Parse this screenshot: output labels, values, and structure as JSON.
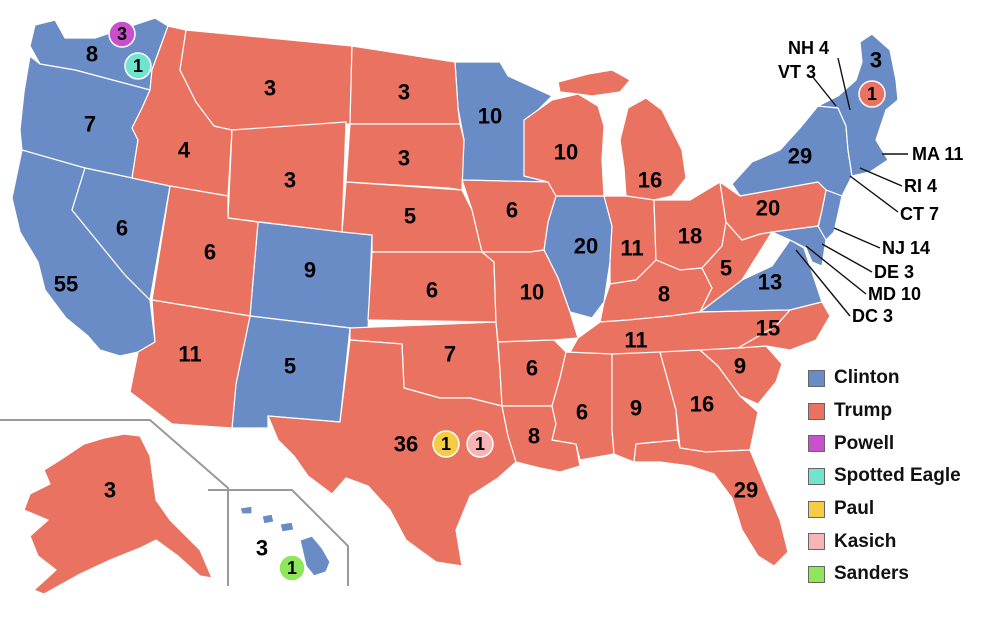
{
  "colors": {
    "clinton": "#6a8cc6",
    "trump": "#ea7260",
    "powell": "#c94fcb",
    "spotted_eagle": "#71e3cf",
    "paul": "#f5cd45",
    "kasich": "#f7b4b6",
    "sanders": "#8ee65b"
  },
  "legend": [
    {
      "label": "Clinton",
      "color": "#6a8cc6"
    },
    {
      "label": "Trump",
      "color": "#ea7260"
    },
    {
      "label": "Powell",
      "color": "#c94fcb"
    },
    {
      "label": "Spotted Eagle",
      "color": "#71e3cf"
    },
    {
      "label": "Paul",
      "color": "#f5cd45"
    },
    {
      "label": "Kasich",
      "color": "#f7b4b6"
    },
    {
      "label": "Sanders",
      "color": "#8ee65b"
    }
  ],
  "state_labels": {
    "wa": "8",
    "or": "7",
    "ca": "55",
    "nv": "6",
    "id": "4",
    "mt": "3",
    "wy": "3",
    "ut": "6",
    "az": "11",
    "co": "9",
    "nm": "5",
    "nd": "3",
    "sd": "3",
    "ne": "5",
    "ks": "6",
    "ok": "7",
    "tx": "36",
    "mn": "10",
    "ia": "6",
    "mo": "10",
    "ar": "6",
    "la": "8",
    "wi": "10",
    "il": "20",
    "mi": "16",
    "in": "11",
    "oh": "18",
    "ky": "8",
    "tn": "11",
    "ms": "6",
    "al": "9",
    "ga": "16",
    "fl": "29",
    "sc": "9",
    "nc": "15",
    "va": "13",
    "wv": "5",
    "pa": "20",
    "ny": "29",
    "me": "3",
    "ak": "3",
    "hi": "3"
  },
  "badges": {
    "wa_powell": "3",
    "wa_spotted_eagle": "1",
    "me_trump": "1",
    "tx_paul": "1",
    "tx_kasich": "1",
    "hi_sanders": "1"
  },
  "callouts": {
    "nh": "NH 4",
    "vt": "VT 3",
    "ma": "MA 11",
    "ri": "RI 4",
    "ct": "CT 7",
    "nj": "NJ 14",
    "de": "DE 3",
    "md": "MD 10",
    "dc": "DC 3"
  }
}
